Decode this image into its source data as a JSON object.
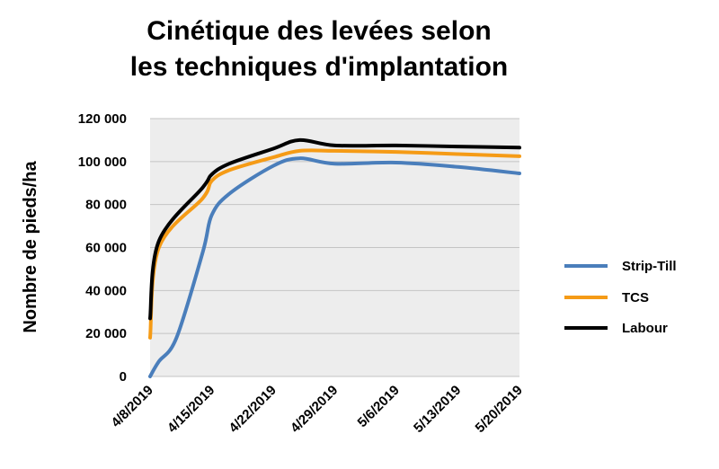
{
  "chart_data": {
    "type": "line",
    "title_lines": [
      "Cinétique des levées selon",
      "les techniques d'implantation"
    ],
    "xlabel": "",
    "ylabel": "Nombre de pieds/ha",
    "xlim": [
      "4/8/2019",
      "5/20/2019"
    ],
    "ylim": [
      0,
      120000
    ],
    "x_ticks": [
      "4/8/2019",
      "4/15/2019",
      "4/22/2019",
      "4/29/2019",
      "5/6/2019",
      "5/13/2019",
      "5/20/2019"
    ],
    "y_ticks": [
      {
        "value": 0,
        "label": "0"
      },
      {
        "value": 20000,
        "label": "20 000"
      },
      {
        "value": 40000,
        "label": "40 000"
      },
      {
        "value": 60000,
        "label": "60 000"
      },
      {
        "value": 80000,
        "label": "80 000"
      },
      {
        "value": 100000,
        "label": "100 000"
      },
      {
        "value": 120000,
        "label": "120 000"
      }
    ],
    "grid": true,
    "legend_position": "right",
    "series": [
      {
        "name": "Strip-Till",
        "color": "#4a7ebb",
        "points": [
          {
            "x": "4/8/2019",
            "y": 0
          },
          {
            "x": "4/9/2019",
            "y": 7000
          },
          {
            "x": "4/11/2019",
            "y": 18000
          },
          {
            "x": "4/14/2019",
            "y": 58000
          },
          {
            "x": "4/15/2019",
            "y": 75000
          },
          {
            "x": "4/17/2019",
            "y": 85000
          },
          {
            "x": "4/22/2019",
            "y": 98000
          },
          {
            "x": "4/25/2019",
            "y": 101500
          },
          {
            "x": "4/29/2019",
            "y": 99000
          },
          {
            "x": "5/6/2019",
            "y": 99500
          },
          {
            "x": "5/13/2019",
            "y": 97500
          },
          {
            "x": "5/20/2019",
            "y": 94500
          }
        ]
      },
      {
        "name": "TCS",
        "color": "#f59b16",
        "points": [
          {
            "x": "4/8/2019",
            "y": 18000
          },
          {
            "x": "4/9/2019",
            "y": 60000
          },
          {
            "x": "4/14/2019",
            "y": 83000
          },
          {
            "x": "4/15/2019",
            "y": 91000
          },
          {
            "x": "4/17/2019",
            "y": 96000
          },
          {
            "x": "4/22/2019",
            "y": 102000
          },
          {
            "x": "4/25/2019",
            "y": 105000
          },
          {
            "x": "4/29/2019",
            "y": 105000
          },
          {
            "x": "5/6/2019",
            "y": 104500
          },
          {
            "x": "5/13/2019",
            "y": 103500
          },
          {
            "x": "5/20/2019",
            "y": 102500
          }
        ]
      },
      {
        "name": "Labour",
        "color": "#000000",
        "points": [
          {
            "x": "4/8/2019",
            "y": 27000
          },
          {
            "x": "4/9/2019",
            "y": 63000
          },
          {
            "x": "4/14/2019",
            "y": 88000
          },
          {
            "x": "4/15/2019",
            "y": 94000
          },
          {
            "x": "4/17/2019",
            "y": 99000
          },
          {
            "x": "4/22/2019",
            "y": 106000
          },
          {
            "x": "4/25/2019",
            "y": 110000
          },
          {
            "x": "4/29/2019",
            "y": 107500
          },
          {
            "x": "5/6/2019",
            "y": 107500
          },
          {
            "x": "5/13/2019",
            "y": 107000
          },
          {
            "x": "5/20/2019",
            "y": 106500
          }
        ]
      }
    ]
  }
}
